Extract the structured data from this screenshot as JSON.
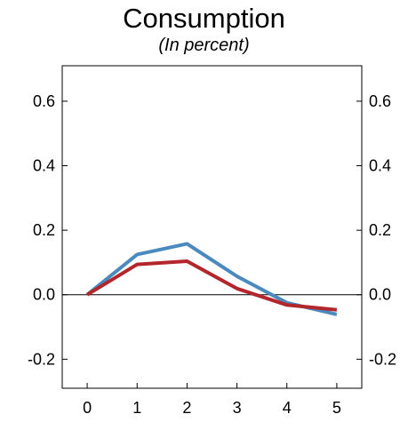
{
  "chart_data": {
    "type": "line",
    "title": "Consumption",
    "subtitle": "(In percent)",
    "x": [
      0,
      1,
      2,
      3,
      4,
      5
    ],
    "xlim": [
      -0.5,
      5.5
    ],
    "ylim": [
      -0.29,
      0.71
    ],
    "y_ticks": [
      -0.2,
      0.0,
      0.2,
      0.4,
      0.6
    ],
    "y_tick_labels": [
      "-0.2",
      "0.0",
      "0.2",
      "0.4",
      "0.6"
    ],
    "x_tick_labels": [
      "0",
      "1",
      "2",
      "3",
      "4",
      "5"
    ],
    "zero_line": true,
    "grid": false,
    "dual_y_axis_labels": true,
    "series": [
      {
        "color": "#4a8abf",
        "values": [
          0.0,
          0.125,
          0.158,
          0.057,
          -0.025,
          -0.061
        ]
      },
      {
        "color": "#b3262b",
        "values": [
          0.0,
          0.094,
          0.104,
          0.019,
          -0.032,
          -0.047
        ]
      }
    ]
  }
}
